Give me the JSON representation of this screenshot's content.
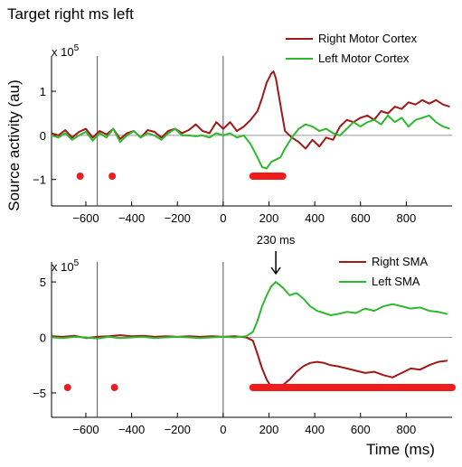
{
  "title": "Target right ms left",
  "ylabel": "Source activity (au)",
  "xlabel": "Time (ms)",
  "chart_data": [
    {
      "type": "line",
      "scale_label": "x 10^5",
      "xlim": [
        -750,
        1000
      ],
      "ylim": [
        -1.6,
        1.8
      ],
      "xticks": [
        -600,
        -400,
        -200,
        0,
        200,
        400,
        600,
        800
      ],
      "xtick_labels": [
        "−600",
        "−400",
        "−200",
        "0",
        "200",
        "400",
        "600",
        "800"
      ],
      "yticks": [
        -1,
        0,
        1
      ],
      "ytick_labels": [
        "−1",
        "0",
        "1"
      ],
      "vlines": [
        -550,
        0
      ],
      "legend_position": "top-right",
      "series": [
        {
          "name": "Right Motor Cortex",
          "color": "#a01818",
          "x": [
            -750,
            -720,
            -690,
            -660,
            -630,
            -600,
            -570,
            -540,
            -510,
            -480,
            -450,
            -420,
            -390,
            -360,
            -330,
            -300,
            -270,
            -240,
            -210,
            -180,
            -150,
            -120,
            -90,
            -60,
            -30,
            0,
            30,
            60,
            90,
            120,
            150,
            170,
            190,
            210,
            220,
            230,
            250,
            270,
            300,
            330,
            360,
            390,
            420,
            450,
            480,
            510,
            540,
            570,
            600,
            630,
            660,
            690,
            720,
            750,
            780,
            810,
            840,
            870,
            900,
            930,
            960,
            990
          ],
          "y": [
            0.05,
            0.0,
            0.12,
            -0.05,
            0.08,
            0.15,
            -0.05,
            0.1,
            0.02,
            0.15,
            -0.08,
            0.05,
            0.1,
            -0.05,
            0.12,
            0.08,
            -0.05,
            0.1,
            0.15,
            0.05,
            0.12,
            0.25,
            0.1,
            0.05,
            0.3,
            0.15,
            0.3,
            0.1,
            0.2,
            0.35,
            0.55,
            0.85,
            1.2,
            1.4,
            1.45,
            1.3,
            0.7,
            0.1,
            -0.05,
            -0.15,
            -0.3,
            -0.1,
            -0.25,
            -0.05,
            -0.1,
            0.2,
            0.35,
            0.3,
            0.4,
            0.45,
            0.35,
            0.55,
            0.5,
            0.65,
            0.6,
            0.75,
            0.7,
            0.8,
            0.72,
            0.8,
            0.7,
            0.65
          ]
        },
        {
          "name": "Left Motor Cortex",
          "color": "#2eb82e",
          "x": [
            -750,
            -720,
            -690,
            -660,
            -630,
            -600,
            -570,
            -540,
            -510,
            -480,
            -450,
            -420,
            -390,
            -360,
            -330,
            -300,
            -270,
            -240,
            -210,
            -180,
            -150,
            -120,
            -90,
            -60,
            -30,
            0,
            30,
            60,
            90,
            120,
            150,
            170,
            190,
            210,
            230,
            250,
            270,
            300,
            330,
            360,
            390,
            420,
            450,
            480,
            510,
            540,
            570,
            600,
            630,
            660,
            690,
            720,
            750,
            780,
            810,
            840,
            870,
            900,
            930,
            960,
            990
          ],
          "y": [
            0.0,
            -0.05,
            0.05,
            -0.1,
            0.0,
            0.08,
            -0.12,
            0.05,
            -0.05,
            0.15,
            -0.15,
            0.0,
            0.1,
            -0.05,
            0.05,
            0.0,
            -0.1,
            0.05,
            0.15,
            0.0,
            0.0,
            -0.02,
            0.0,
            -0.05,
            0.05,
            0.0,
            0.05,
            -0.05,
            0.0,
            -0.2,
            -0.5,
            -0.72,
            -0.75,
            -0.6,
            -0.55,
            -0.5,
            -0.3,
            -0.05,
            0.15,
            0.25,
            0.2,
            0.1,
            0.15,
            0.05,
            0.0,
            0.15,
            0.3,
            0.2,
            0.3,
            0.35,
            0.25,
            0.45,
            0.3,
            0.4,
            0.2,
            0.35,
            0.4,
            0.45,
            0.3,
            0.2,
            0.15
          ]
        }
      ],
      "significance_markers": [
        {
          "type": "dot",
          "x": -625
        },
        {
          "type": "dot",
          "x": -485
        },
        {
          "type": "bar",
          "x_start": 130,
          "x_end": 260
        }
      ]
    },
    {
      "type": "line",
      "scale_label": "x 10^5",
      "xlim": [
        -750,
        1000
      ],
      "ylim": [
        -7.2,
        6.8
      ],
      "xticks": [
        -600,
        -400,
        -200,
        0,
        200,
        400,
        600,
        800
      ],
      "xtick_labels": [
        "−600",
        "−400",
        "−200",
        "0",
        "200",
        "400",
        "600",
        "800"
      ],
      "yticks": [
        -5,
        0,
        5
      ],
      "ytick_labels": [
        "−5",
        "0",
        "5"
      ],
      "vlines": [
        -550,
        0
      ],
      "legend_position": "top-right",
      "annotation": {
        "text": "230 ms",
        "x": 230
      },
      "series": [
        {
          "name": "Right SMA",
          "color": "#a01818",
          "x": [
            -750,
            -700,
            -650,
            -600,
            -550,
            -500,
            -450,
            -400,
            -350,
            -300,
            -250,
            -200,
            -150,
            -100,
            -50,
            0,
            50,
            100,
            130,
            150,
            170,
            190,
            210,
            230,
            260,
            290,
            320,
            350,
            380,
            410,
            440,
            470,
            500,
            540,
            580,
            620,
            660,
            700,
            740,
            780,
            820,
            860,
            900,
            940,
            980
          ],
          "y": [
            0.1,
            0.05,
            0.15,
            -0.05,
            0.05,
            0.1,
            0.2,
            0.1,
            0.15,
            0.05,
            0.1,
            0.05,
            0.1,
            0.05,
            0.1,
            0.05,
            0.1,
            0.0,
            -0.3,
            -1.5,
            -2.8,
            -3.8,
            -4.5,
            -4.7,
            -4.3,
            -3.8,
            -3.1,
            -2.6,
            -2.3,
            -2.2,
            -2.3,
            -2.5,
            -2.6,
            -2.8,
            -3.0,
            -3.2,
            -3.1,
            -3.4,
            -3.6,
            -3.2,
            -2.8,
            -2.9,
            -2.5,
            -2.2,
            -2.1
          ]
        },
        {
          "name": "Left SMA",
          "color": "#2eb82e",
          "x": [
            -750,
            -700,
            -650,
            -600,
            -550,
            -500,
            -450,
            -400,
            -350,
            -300,
            -250,
            -200,
            -150,
            -100,
            -50,
            0,
            50,
            100,
            130,
            150,
            170,
            190,
            210,
            230,
            260,
            290,
            320,
            350,
            380,
            410,
            440,
            470,
            500,
            540,
            580,
            620,
            660,
            700,
            740,
            780,
            820,
            860,
            900,
            940,
            980
          ],
          "y": [
            0.0,
            -0.05,
            0.05,
            0.0,
            -0.1,
            0.05,
            -0.05,
            0.0,
            0.05,
            -0.05,
            0.0,
            0.05,
            0.0,
            -0.05,
            0.0,
            0.05,
            0.0,
            0.1,
            0.5,
            1.5,
            2.8,
            3.8,
            4.6,
            5.0,
            4.5,
            3.8,
            4.0,
            3.5,
            2.8,
            2.4,
            2.2,
            2.0,
            2.1,
            2.3,
            2.2,
            2.6,
            2.4,
            2.8,
            3.0,
            2.8,
            2.6,
            2.7,
            2.4,
            2.3,
            2.1
          ]
        }
      ],
      "significance_markers": [
        {
          "type": "dot",
          "x": -680
        },
        {
          "type": "dot",
          "x": -475
        },
        {
          "type": "bar",
          "x_start": 130,
          "x_end": 1000
        }
      ]
    }
  ]
}
